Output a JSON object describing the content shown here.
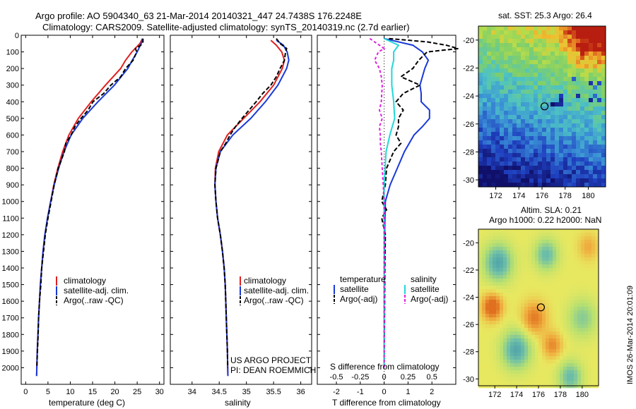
{
  "header": {
    "line1": "Argo profile: AO 5904340_63 21-Mar-2014 20140321_447 24.7438S 176.2248E",
    "line2": "Climatology: CARS2009. Satellite-adjusted climatology: synTS_20140319.nc (2.7d earlier)"
  },
  "colors": {
    "climatology": "#e02020",
    "satellite": "#1a3ad8",
    "argo": "#000000",
    "sal_satellite": "#20d8d8",
    "sal_argo": "#e020e0"
  },
  "credit": {
    "line1": "US ARGO PROJECT",
    "line2": "PI: DEAN ROEMMICH"
  },
  "stamp": "IMOS 26-Mar-2014 20:01:09",
  "chart_data": [
    {
      "type": "line",
      "xlabel": "temperature (deg C)",
      "xlim": [
        -1,
        31
      ],
      "xticks": [
        "0",
        "5",
        "10",
        "15",
        "20",
        "25",
        "30"
      ],
      "ylim": [
        2100,
        0
      ],
      "yticks": [
        "0",
        "100",
        "200",
        "300",
        "400",
        "500",
        "600",
        "700",
        "800",
        "900",
        "1000",
        "1100",
        "1200",
        "1300",
        "1400",
        "1500",
        "1600",
        "1700",
        "1800",
        "1900",
        "2000"
      ],
      "legend": [
        "climatology",
        "satellite-adj. clim.",
        "Argo(..raw -QC)"
      ],
      "series": [
        {
          "name": "climatology",
          "depth": [
            20,
            50,
            100,
            150,
            200,
            300,
            400,
            500,
            600,
            700,
            800,
            900,
            1000,
            1100,
            1200,
            1300,
            1400,
            1500,
            1600,
            1700,
            1800,
            1900,
            2000,
            2050
          ],
          "values": [
            26.2,
            25.6,
            23.8,
            22.4,
            21.3,
            17.9,
            14.7,
            11.8,
            9.7,
            8.3,
            7.2,
            6.3,
            5.6,
            4.9,
            4.3,
            3.9,
            3.6,
            3.3,
            3.1,
            2.9,
            2.75,
            2.6,
            2.5,
            2.45
          ]
        },
        {
          "name": "satellite-adj. clim.",
          "depth": [
            20,
            50,
            100,
            150,
            200,
            300,
            400,
            500,
            600,
            700,
            800,
            900,
            1000,
            1100,
            1200,
            1300,
            1400,
            1500,
            1600,
            1700,
            1800,
            1900,
            2000,
            2050
          ],
          "values": [
            26.2,
            25.9,
            25.0,
            23.9,
            22.9,
            19.9,
            16.2,
            12.8,
            10.2,
            8.6,
            7.4,
            6.4,
            5.6,
            4.9,
            4.3,
            3.9,
            3.6,
            3.3,
            3.1,
            2.9,
            2.75,
            2.6,
            2.5,
            2.45
          ]
        },
        {
          "name": "Argo(..raw -QC)",
          "depth": [
            20,
            40,
            60,
            80,
            100,
            150,
            200,
            250,
            300,
            350,
            400,
            450,
            500,
            550,
            600,
            650,
            700,
            800,
            900,
            1000,
            1100,
            1200,
            1300,
            1400,
            1500,
            1600,
            1700,
            1800,
            1900,
            2000
          ],
          "values": [
            26.3,
            26.3,
            25.8,
            24.6,
            24.9,
            24.1,
            22.4,
            21.3,
            19.1,
            17.5,
            15.1,
            14.0,
            12.4,
            11.0,
            10.2,
            9.0,
            8.7,
            7.3,
            6.4,
            5.7,
            5.0,
            4.4,
            4.0,
            3.6,
            3.4,
            3.1,
            2.9,
            2.8,
            2.65,
            2.5
          ]
        }
      ]
    },
    {
      "type": "line",
      "xlabel": "salinity",
      "xlim": [
        33.6,
        36.2
      ],
      "xticks": [
        "34",
        "34.5",
        "35",
        "35.5",
        "36"
      ],
      "ylim": [
        2100,
        0
      ],
      "legend": [
        "climatology",
        "satellite-adj. clim.",
        "Argo(..raw -QC)"
      ],
      "series": [
        {
          "name": "climatology",
          "depth": [
            30,
            60,
            100,
            150,
            200,
            300,
            400,
            500,
            600,
            700,
            800,
            900,
            1000,
            1100,
            1200,
            1300,
            1400,
            1500,
            1600,
            1700,
            1800,
            1900,
            2000,
            2050
          ],
          "values": [
            35.45,
            35.55,
            35.65,
            35.7,
            35.66,
            35.5,
            35.25,
            34.95,
            34.65,
            34.49,
            34.43,
            34.42,
            34.44,
            34.47,
            34.52,
            34.56,
            34.59,
            34.61,
            34.62,
            34.63,
            34.64,
            34.65,
            34.655,
            34.66
          ]
        },
        {
          "name": "satellite-adj. clim.",
          "depth": [
            30,
            60,
            100,
            150,
            200,
            300,
            400,
            500,
            600,
            700,
            800,
            900,
            1000,
            1100,
            1200,
            1300,
            1400,
            1500,
            1600,
            1700,
            1800,
            1900,
            2000,
            2050
          ],
          "values": [
            35.55,
            35.68,
            35.75,
            35.78,
            35.74,
            35.58,
            35.35,
            35.08,
            34.75,
            34.52,
            34.44,
            34.42,
            34.44,
            34.47,
            34.52,
            34.56,
            34.59,
            34.61,
            34.62,
            34.63,
            34.64,
            34.65,
            34.655,
            34.66
          ]
        },
        {
          "name": "Argo(..raw -QC)",
          "depth": [
            20,
            50,
            80,
            100,
            150,
            200,
            250,
            300,
            350,
            400,
            450,
            500,
            550,
            600,
            650,
            700,
            800,
            900,
            1000,
            1100,
            1200,
            1300,
            1400,
            1500,
            1600,
            1700,
            1800,
            1900,
            2000
          ],
          "values": [
            35.55,
            35.62,
            35.74,
            35.72,
            35.7,
            35.62,
            35.55,
            35.45,
            35.3,
            35.18,
            35.05,
            34.92,
            34.8,
            34.7,
            34.62,
            34.52,
            34.44,
            34.42,
            34.44,
            34.47,
            34.52,
            34.56,
            34.59,
            34.61,
            34.62,
            34.63,
            34.64,
            34.65,
            34.655
          ]
        }
      ]
    },
    {
      "type": "line",
      "xlabel": "T difference from climatology",
      "xlabel_top": "S difference from climatology",
      "xlim": [
        -2.8,
        3.0
      ],
      "xticks": [
        "-2",
        "-1",
        "0",
        "1",
        "2"
      ],
      "xticks_top": [
        "-0.5",
        "-0.25",
        "0",
        "0.25",
        "0.5"
      ],
      "ylim": [
        2100,
        0
      ],
      "legend_headers": [
        "temperature",
        "salinity"
      ],
      "legend": [
        "satellite",
        "Argo(-adj)",
        "satellite",
        "Argo(-adj)"
      ],
      "series": [
        {
          "name": "temperature satellite",
          "depth": [
            20,
            60,
            100,
            150,
            200,
            300,
            350,
            400,
            450,
            500,
            550,
            600,
            700,
            800,
            900,
            1000,
            1200,
            1500,
            1800,
            2000
          ],
          "values": [
            0.0,
            1.2,
            1.6,
            1.85,
            1.7,
            1.5,
            1.55,
            1.55,
            1.9,
            1.9,
            1.6,
            1.25,
            0.85,
            0.55,
            0.25,
            0.05,
            0.02,
            0.0,
            0.0,
            0.0
          ]
        },
        {
          "name": "temperature Argo(-adj)",
          "depth": [
            20,
            40,
            60,
            80,
            100,
            150,
            200,
            250,
            300,
            350,
            400,
            450,
            500,
            550,
            600,
            650,
            700,
            800,
            900,
            1000,
            1050,
            1100,
            1200,
            1400,
            1600,
            1800,
            2000
          ],
          "values": [
            0.2,
            1.8,
            2.6,
            3.1,
            1.8,
            1.45,
            1.2,
            0.7,
            1.5,
            0.8,
            0.5,
            0.8,
            0.6,
            0.6,
            0.5,
            0.7,
            0.4,
            0.1,
            0.05,
            -0.1,
            0.1,
            -0.1,
            0.05,
            0.03,
            0.02,
            0.01,
            0.0
          ]
        },
        {
          "name": "salinity satellite",
          "depth": [
            20,
            60,
            100,
            150,
            200,
            300,
            400,
            500,
            600,
            700,
            800,
            900,
            1000,
            1200,
            1500,
            1800,
            2000
          ],
          "values": [
            0.0,
            0.15,
            0.1,
            0.1,
            0.08,
            0.08,
            0.1,
            0.11,
            0.06,
            0.02,
            0.01,
            0.0,
            0.0,
            0.0,
            0.0,
            0.0,
            0.0
          ]
        },
        {
          "name": "salinity Argo(-adj)",
          "depth": [
            20,
            40,
            60,
            80,
            100,
            150,
            200,
            250,
            300,
            400,
            450,
            500,
            550,
            600,
            650,
            700,
            800,
            900,
            1000,
            1200,
            1500,
            1800,
            2000
          ],
          "values": [
            -0.15,
            -0.1,
            -0.05,
            0.0,
            -0.06,
            -0.1,
            -0.05,
            -0.03,
            -0.02,
            -0.03,
            -0.05,
            -0.02,
            -0.05,
            -0.04,
            -0.04,
            -0.03,
            -0.02,
            -0.01,
            0.0,
            0.0,
            0.0,
            0.0,
            0.0
          ]
        }
      ]
    },
    {
      "type": "heatmap",
      "title": "sat. SST: 25.3 Argo: 26.4",
      "xlim": [
        170.5,
        181.5
      ],
      "ylim": [
        -30.5,
        -19
      ],
      "xticks": [
        "172",
        "174",
        "176",
        "178",
        "180"
      ],
      "yticks": [
        "-20",
        "-22",
        "-24",
        "-26",
        "-28",
        "-30"
      ],
      "marker": {
        "lon": 176.22,
        "lat": -24.74
      }
    },
    {
      "type": "heatmap",
      "title": "Altim. SLA: 0.21",
      "subtitle": "Argo h1000: 0.22 h2000: NaN",
      "xlim": [
        170.5,
        181.5
      ],
      "ylim": [
        -30.5,
        -19
      ],
      "xticks": [
        "172",
        "174",
        "176",
        "178",
        "180"
      ],
      "yticks": [
        "-20",
        "-22",
        "-24",
        "-26",
        "-28",
        "-30"
      ],
      "marker": {
        "lon": 176.22,
        "lat": -24.74
      }
    }
  ]
}
